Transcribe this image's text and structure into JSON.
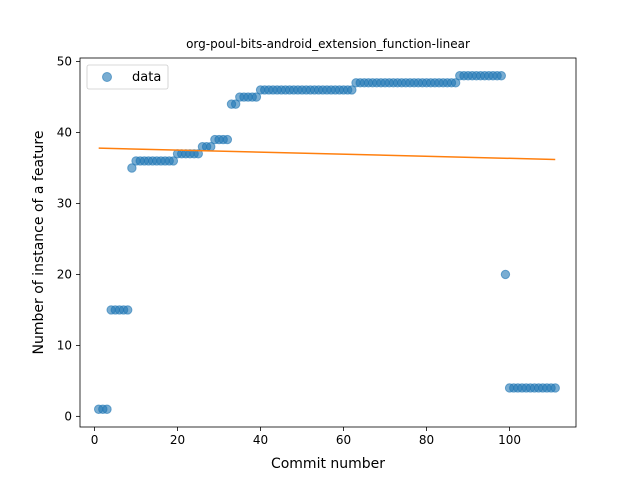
{
  "chart_data": {
    "type": "scatter",
    "title": "org-poul-bits-android_extension_function-linear",
    "xlabel": "Commit number",
    "ylabel": "Number of instance of a feature",
    "xlim": [
      -3.5,
      116
    ],
    "ylim": [
      -1.5,
      50.5
    ],
    "xticks": [
      0,
      20,
      40,
      60,
      80,
      100
    ],
    "yticks": [
      0,
      10,
      20,
      30,
      40,
      50
    ],
    "legend": {
      "placement": "top-left",
      "entries": [
        "data"
      ]
    },
    "colors": {
      "points": "#1f77b4",
      "fit": "#ff7f0e"
    },
    "series": [
      {
        "name": "data",
        "kind": "scatter",
        "x": [
          1,
          2,
          3,
          4,
          5,
          6,
          7,
          8,
          9,
          10,
          11,
          12,
          13,
          14,
          15,
          16,
          17,
          18,
          19,
          20,
          21,
          22,
          23,
          24,
          25,
          26,
          27,
          28,
          29,
          30,
          31,
          32,
          33,
          34,
          35,
          36,
          37,
          38,
          39,
          40,
          41,
          42,
          43,
          44,
          45,
          46,
          47,
          48,
          49,
          50,
          51,
          52,
          53,
          54,
          55,
          56,
          57,
          58,
          59,
          60,
          61,
          62,
          63,
          64,
          65,
          66,
          67,
          68,
          69,
          70,
          71,
          72,
          73,
          74,
          75,
          76,
          77,
          78,
          79,
          80,
          81,
          82,
          83,
          84,
          85,
          86,
          87,
          88,
          89,
          90,
          91,
          92,
          93,
          94,
          95,
          96,
          97,
          98,
          99,
          100,
          101,
          102,
          103,
          104,
          105,
          106,
          107,
          108,
          109,
          110,
          111
        ],
        "y": [
          1,
          1,
          1,
          15,
          15,
          15,
          15,
          15,
          35,
          36,
          36,
          36,
          36,
          36,
          36,
          36,
          36,
          36,
          36,
          37,
          37,
          37,
          37,
          37,
          37,
          38,
          38,
          38,
          39,
          39,
          39,
          39,
          44,
          44,
          45,
          45,
          45,
          45,
          45,
          46,
          46,
          46,
          46,
          46,
          46,
          46,
          46,
          46,
          46,
          46,
          46,
          46,
          46,
          46,
          46,
          46,
          46,
          46,
          46,
          46,
          46,
          46,
          47,
          47,
          47,
          47,
          47,
          47,
          47,
          47,
          47,
          47,
          47,
          47,
          47,
          47,
          47,
          47,
          47,
          47,
          47,
          47,
          47,
          47,
          47,
          47,
          47,
          48,
          48,
          48,
          48,
          48,
          48,
          48,
          48,
          48,
          48,
          48,
          20,
          4,
          4,
          4,
          4,
          4,
          4,
          4,
          4,
          4,
          4,
          4,
          4
        ]
      },
      {
        "name": "",
        "kind": "line",
        "x": [
          1,
          111
        ],
        "y": [
          37.8,
          36.2
        ]
      }
    ]
  }
}
